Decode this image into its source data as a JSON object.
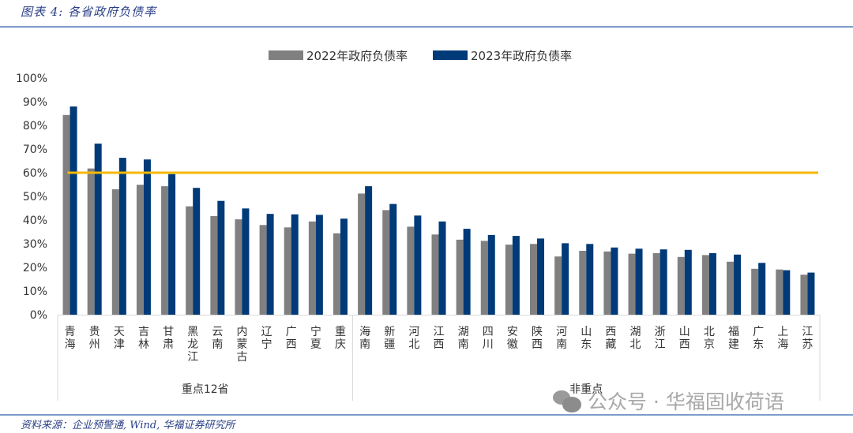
{
  "title": "图表 4: 各省政府负债率",
  "source": "资料来源：企业预警通, Wind, 华福证券研究所",
  "watermark": "公众号 · 华福固收荷语",
  "chart_data": {
    "type": "bar",
    "title": "",
    "xlabel": "",
    "ylabel": "",
    "ylim": [
      0,
      100
    ],
    "yticks": [
      "0%",
      "10%",
      "20%",
      "30%",
      "40%",
      "50%",
      "60%",
      "70%",
      "80%",
      "90%",
      "100%"
    ],
    "legend_position": "top-center",
    "grid": false,
    "categories": [
      "青海",
      "贵州",
      "天津",
      "吉林",
      "甘肃",
      "黑龙江",
      "云南",
      "内蒙古",
      "辽宁",
      "广西",
      "宁夏",
      "重庆",
      "海南",
      "新疆",
      "河北",
      "江西",
      "湖南",
      "四川",
      "安徽",
      "陕西",
      "河南",
      "山东",
      "西藏",
      "湖北",
      "浙江",
      "山西",
      "北京",
      "福建",
      "广东",
      "上海",
      "江苏"
    ],
    "groups": [
      {
        "label": "重点12省",
        "count": 12
      },
      {
        "label": "非重点",
        "count": 19
      }
    ],
    "series": [
      {
        "name": "2022年政府负债率",
        "color": "#808080",
        "values": [
          84.4,
          61.8,
          53.0,
          54.9,
          54.3,
          45.8,
          41.7,
          40.3,
          37.9,
          36.9,
          39.4,
          34.4,
          51.2,
          44.2,
          37.2,
          33.9,
          31.7,
          31.2,
          29.6,
          29.9,
          24.6,
          27.0,
          26.7,
          25.8,
          26.0,
          24.4,
          25.2,
          22.4,
          19.4,
          19.1,
          16.9
        ]
      },
      {
        "name": "2023年政府负债率",
        "color": "#003a78",
        "values": [
          88.0,
          72.3,
          66.3,
          65.6,
          59.4,
          53.6,
          48.1,
          44.9,
          42.6,
          42.4,
          42.2,
          40.6,
          54.3,
          46.8,
          41.9,
          39.4,
          36.3,
          33.7,
          33.3,
          32.2,
          30.2,
          29.9,
          28.4,
          27.9,
          27.6,
          27.4,
          26.0,
          25.4,
          21.9,
          18.8,
          17.8
        ]
      }
    ],
    "reference_line": {
      "value": 60,
      "color": "#f5b800"
    }
  }
}
